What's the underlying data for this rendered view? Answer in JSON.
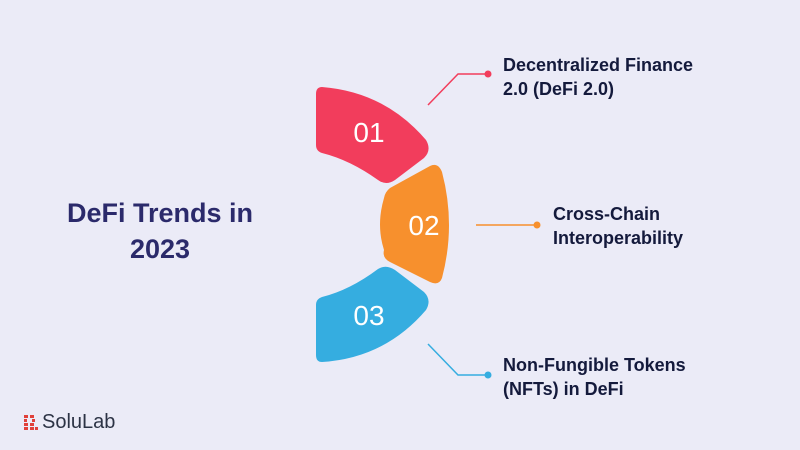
{
  "title_lines": [
    "DeFi Trends in",
    "2023"
  ],
  "trends": [
    {
      "number": "01",
      "lines": [
        "Decentralized Finance",
        "2.0 (DeFi 2.0)"
      ],
      "color": "#f23d5c"
    },
    {
      "number": "02",
      "lines": [
        "Cross-Chain",
        "Interoperability"
      ],
      "color": "#f7902d"
    },
    {
      "number": "03",
      "lines": [
        "Non-Fungible Tokens",
        "(NFTs) in DeFi"
      ],
      "color": "#35ade0"
    }
  ],
  "brand": {
    "name": "SoluLab",
    "icon": "solulab-logo-icon",
    "color": "#e0403a"
  }
}
